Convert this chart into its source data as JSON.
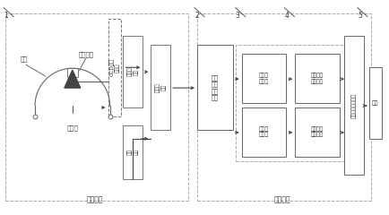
{
  "bg_color": "#ffffff",
  "hardware_label": "硬件系统",
  "software_label": "软件系统",
  "labels": {
    "tea": "茶叶",
    "light_room": "光原室",
    "image_window": "图像窗口",
    "ccd_camera": "CCD彩色\n摄像机",
    "image_capture": "图像采\n集卡",
    "digital_camera": "数码\n相机",
    "computer": "计算机\n主机",
    "filter_preprocess": "图像\n滤波\n等预\n处理",
    "color_transform": "图像颜\n色转换",
    "image_binarize": "图像的\n二值化",
    "color_feature": "颜色特征\n参数提取",
    "shape_feature": "形状特征\n参数提取",
    "neural_network": "遗传神经网络系统",
    "result": "结果"
  },
  "numbers": [
    "1",
    "2",
    "3",
    "4",
    "5"
  ],
  "num_x": [
    3,
    217,
    263,
    318,
    400
  ],
  "num_y": [
    12,
    12,
    12,
    12,
    12
  ]
}
